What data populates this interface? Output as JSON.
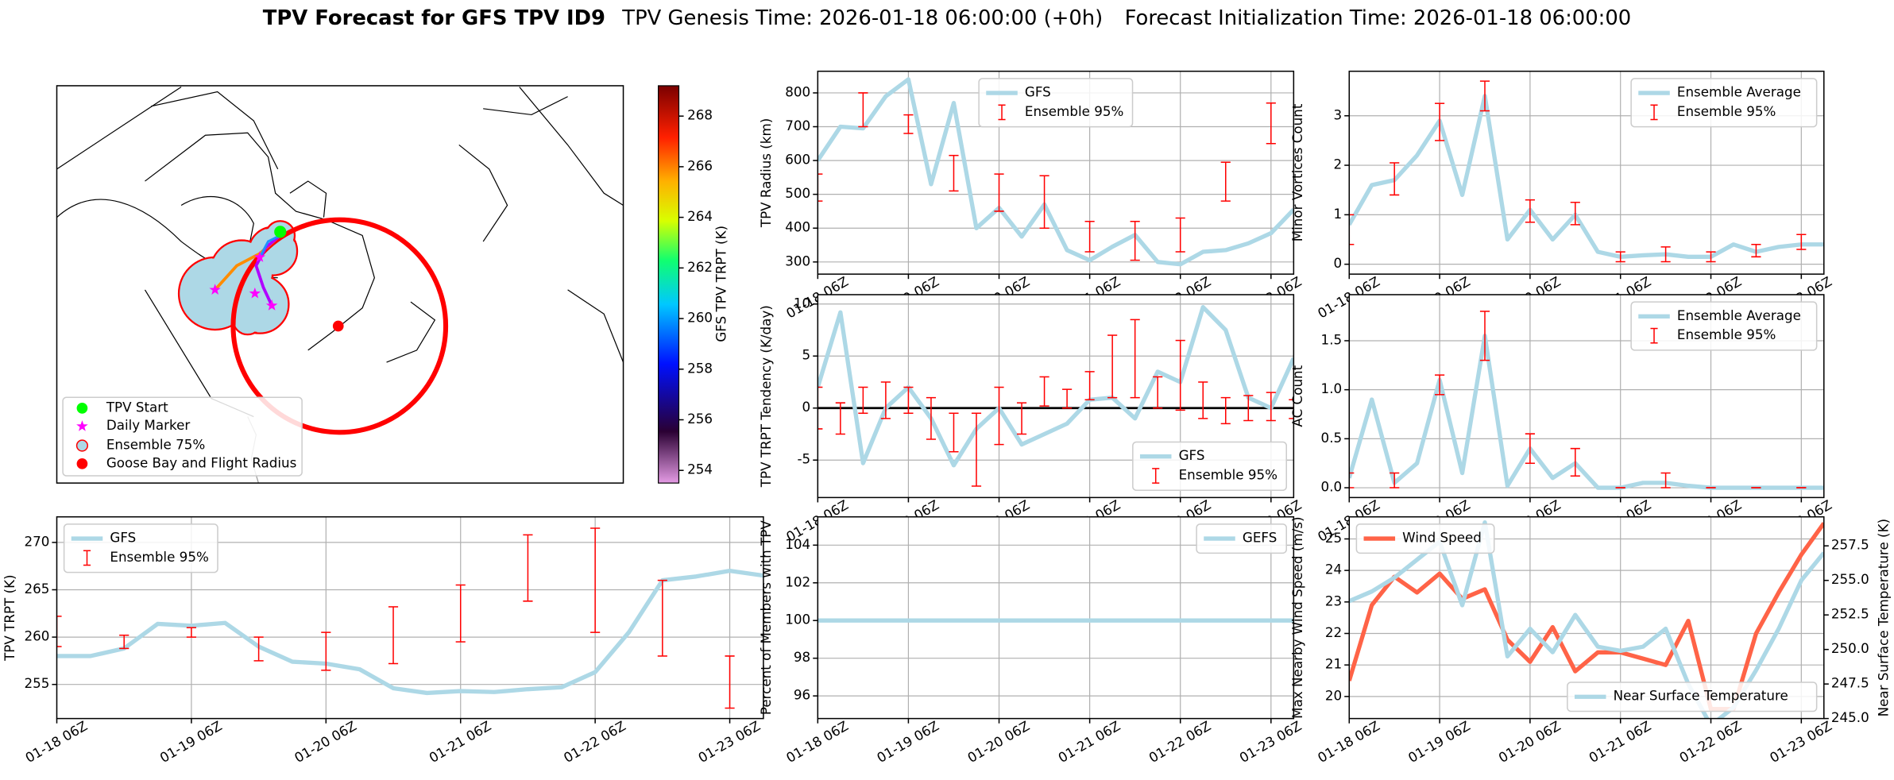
{
  "header": {
    "title": "TPV Forecast for GFS TPV ID9",
    "genesis": "TPV Genesis Time: 2026-01-18 06:00:00 (+0h)",
    "init": "Forecast Initialization Time: 2026-01-18 06:00:00"
  },
  "chart_data": [
    {
      "type": "map",
      "legend_labels": [
        "TPV Start",
        "Daily Marker",
        "Ensemble 75%",
        "Goose Bay and Flight Radius"
      ],
      "legend": "lower left",
      "colorbar": {
        "label": "GFS TPV TRPT (K)",
        "ylim": [
          253.5,
          269.2
        ],
        "yticks": [
          254,
          256,
          258,
          260,
          262,
          264,
          266,
          268
        ]
      }
    },
    {
      "type": "line",
      "ylabel": "TPV TRPT (K)",
      "categories": [
        "01-18 06Z",
        null,
        null,
        null,
        "01-19 06Z",
        null,
        null,
        null,
        "01-20 06Z",
        null,
        null,
        null,
        "01-21 06Z",
        null,
        null,
        null,
        "01-22 06Z",
        null,
        null,
        null,
        "01-23 06Z",
        null
      ],
      "series": [
        {
          "name": "GFS",
          "color": "#add8e6",
          "values": [
            258,
            258,
            258.8,
            261.4,
            261.2,
            261.5,
            259,
            257.4,
            257.2,
            256.6,
            254.6,
            254.1,
            254.3,
            254.2,
            254.5,
            254.7,
            256.3,
            260.5,
            266,
            266.4,
            267,
            266.5
          ]
        }
      ],
      "errorbars": {
        "name": "Ensemble 95%",
        "color": "#ff0000",
        "low": [
          259,
          null,
          258.8,
          null,
          260,
          null,
          257.5,
          null,
          256.5,
          null,
          257.2,
          null,
          259.5,
          null,
          263.8,
          null,
          260.5,
          null,
          258,
          null,
          252.5,
          null
        ],
        "high": [
          262.2,
          null,
          260.2,
          null,
          261,
          null,
          260,
          null,
          260.5,
          null,
          263.2,
          null,
          265.5,
          null,
          270.8,
          null,
          271.5,
          null,
          266,
          null,
          258,
          null
        ]
      },
      "ylim": [
        251.4,
        272.7
      ],
      "yticks": [
        255,
        260,
        265,
        270
      ],
      "grid": true,
      "legend": "upper left"
    },
    {
      "type": "line",
      "ylabel": "TPV Radius (km)",
      "categories": [
        "01-18 06Z",
        null,
        null,
        null,
        "01-19 06Z",
        null,
        null,
        null,
        "01-20 06Z",
        null,
        null,
        null,
        "01-21 06Z",
        null,
        null,
        null,
        "01-22 06Z",
        null,
        null,
        null,
        "01-23 06Z",
        null
      ],
      "series": [
        {
          "name": "GFS",
          "color": "#add8e6",
          "values": [
            600,
            700,
            695,
            790,
            840,
            530,
            770,
            400,
            460,
            375,
            470,
            335,
            305,
            345,
            380,
            300,
            293,
            330,
            335,
            355,
            385,
            455
          ]
        }
      ],
      "errorbars": {
        "name": "Ensemble 95%",
        "color": "#ff0000",
        "low": [
          480,
          null,
          700,
          null,
          680,
          null,
          510,
          null,
          450,
          null,
          400,
          null,
          330,
          null,
          305,
          null,
          330,
          null,
          480,
          null,
          650,
          null
        ],
        "high": [
          560,
          null,
          800,
          null,
          735,
          null,
          615,
          null,
          560,
          null,
          555,
          null,
          420,
          null,
          420,
          null,
          430,
          null,
          595,
          null,
          770,
          null
        ]
      },
      "ylim": [
        264,
        864
      ],
      "yticks": [
        300,
        400,
        500,
        600,
        700,
        800
      ],
      "grid": true,
      "legend": "upper center"
    },
    {
      "type": "line",
      "ylabel": "TPV TRPT Tendency (K/day)",
      "categories": [
        "01-18 06Z",
        null,
        null,
        null,
        "01-19 06Z",
        null,
        null,
        null,
        "01-20 06Z",
        null,
        null,
        null,
        "01-21 06Z",
        null,
        null,
        null,
        "01-22 06Z",
        null,
        null,
        null,
        "01-23 06Z",
        null
      ],
      "series": [
        {
          "name": "GFS",
          "color": "#add8e6",
          "values": [
            2,
            9.2,
            -5.3,
            0,
            2,
            -1,
            -5.5,
            -2,
            0,
            -3.5,
            -2.5,
            -1.5,
            0.8,
            1,
            -1,
            3.5,
            2.5,
            9.7,
            7.5,
            1,
            0,
            4.8
          ]
        }
      ],
      "errorbars": {
        "name": "Ensemble 95%",
        "color": "#ff0000",
        "low": [
          -2,
          -2.5,
          -0.5,
          -1,
          -0.5,
          -3,
          -4.2,
          -7.5,
          -3.5,
          -2.5,
          0.2,
          0,
          0.8,
          1,
          1,
          0,
          -0.2,
          -1,
          -1.5,
          -1.2,
          -1.2,
          -1
        ],
        "high": [
          2,
          0.5,
          2,
          2.5,
          2,
          1,
          -0.5,
          -0.5,
          2,
          0.5,
          3,
          1.8,
          3.5,
          7,
          8.5,
          3,
          6.5,
          2.5,
          1,
          1.2,
          1.5,
          0.8
        ]
      },
      "hline": 0,
      "ylim": [
        -8.6,
        10.9
      ],
      "yticks": [
        -5,
        0,
        5,
        10
      ],
      "grid": true,
      "legend": "lower right"
    },
    {
      "type": "line",
      "ylabel": "Percent of Members with TPV",
      "categories": [
        "01-18 06Z",
        null,
        null,
        null,
        "01-19 06Z",
        null,
        null,
        null,
        "01-20 06Z",
        null,
        null,
        null,
        "01-21 06Z",
        null,
        null,
        null,
        "01-22 06Z",
        null,
        null,
        null,
        "01-23 06Z",
        null
      ],
      "series": [
        {
          "name": "GEFS",
          "color": "#add8e6",
          "values": [
            100,
            100,
            100,
            100,
            100,
            100,
            100,
            100,
            100,
            100,
            100,
            100,
            100,
            100,
            100,
            100,
            100,
            100,
            100,
            100,
            100,
            100
          ]
        }
      ],
      "ylim": [
        94.8,
        105.5
      ],
      "yticks": [
        96,
        98,
        100,
        102,
        104
      ],
      "grid": true,
      "legend": "upper right"
    },
    {
      "type": "line",
      "ylabel": "Minor Vortices Count",
      "categories": [
        "01-18 06Z",
        null,
        null,
        null,
        "01-19 06Z",
        null,
        null,
        null,
        "01-20 06Z",
        null,
        null,
        null,
        "01-21 06Z",
        null,
        null,
        null,
        "01-22 06Z",
        null,
        null,
        null,
        "01-23 06Z",
        null
      ],
      "series": [
        {
          "name": "Ensemble Average",
          "color": "#add8e6",
          "values": [
            0.8,
            1.6,
            1.7,
            2.2,
            2.9,
            1.4,
            3.4,
            0.5,
            1.1,
            0.5,
            1.0,
            0.25,
            0.15,
            0.18,
            0.2,
            0.15,
            0.15,
            0.4,
            0.25,
            0.35,
            0.4,
            0.4
          ]
        }
      ],
      "errorbars": {
        "name": "Ensemble 95%",
        "color": "#ff0000",
        "low": [
          0.4,
          null,
          1.4,
          null,
          2.5,
          null,
          3.1,
          null,
          0.85,
          null,
          0.8,
          null,
          0.05,
          null,
          0.05,
          null,
          0.05,
          null,
          0.15,
          null,
          0.3,
          null
        ],
        "high": [
          1.0,
          null,
          2.05,
          null,
          3.25,
          null,
          3.7,
          null,
          1.3,
          null,
          1.25,
          null,
          0.25,
          null,
          0.35,
          null,
          0.25,
          null,
          0.4,
          null,
          0.6,
          null
        ]
      },
      "ylim": [
        -0.2,
        3.9
      ],
      "yticks": [
        0,
        1,
        2,
        3
      ],
      "grid": true,
      "legend": "upper right"
    },
    {
      "type": "line",
      "ylabel": "AC Count",
      "categories": [
        "01-18 06Z",
        null,
        null,
        null,
        "01-19 06Z",
        null,
        null,
        null,
        "01-20 06Z",
        null,
        null,
        null,
        "01-21 06Z",
        null,
        null,
        null,
        "01-22 06Z",
        null,
        null,
        null,
        "01-23 06Z",
        null
      ],
      "series": [
        {
          "name": "Ensemble Average",
          "color": "#add8e6",
          "values": [
            0.1,
            0.9,
            0.05,
            0.25,
            1.1,
            0.15,
            1.55,
            0.02,
            0.4,
            0.1,
            0.25,
            0,
            0,
            0.05,
            0.05,
            0.02,
            0,
            0,
            0,
            0,
            0,
            0
          ]
        }
      ],
      "errorbars": {
        "name": "Ensemble 95%",
        "color": "#ff0000",
        "low": [
          0,
          null,
          0,
          null,
          0.95,
          null,
          1.3,
          null,
          0.25,
          null,
          0.12,
          null,
          0,
          null,
          0,
          null,
          0,
          null,
          0,
          null,
          0,
          null
        ],
        "high": [
          0.15,
          null,
          0.15,
          null,
          1.15,
          null,
          1.8,
          null,
          0.55,
          null,
          0.4,
          null,
          0,
          null,
          0.15,
          null,
          0,
          null,
          0,
          null,
          0,
          null
        ]
      },
      "ylim": [
        -0.1,
        1.97
      ],
      "yticks": [
        {
          "value": 0,
          "label": "0.0"
        },
        0.5,
        {
          "value": 1,
          "label": "1.0"
        },
        1.5
      ],
      "grid": true,
      "legend": "upper right"
    },
    {
      "type": "line",
      "ylabel": "Max Nearby Wind Speed (m/s)",
      "ylabel_color": "#ff6347",
      "y2label": "Near Surface Temperature (K)",
      "y2label_color": "#4169e1",
      "categories": [
        "01-18 06Z",
        null,
        null,
        null,
        "01-19 06Z",
        null,
        null,
        null,
        "01-20 06Z",
        null,
        null,
        null,
        "01-21 06Z",
        null,
        null,
        null,
        "01-22 06Z",
        null,
        null,
        null,
        "01-23 06Z",
        null
      ],
      "series": [
        {
          "name": "Wind Speed",
          "color": "#ff6347",
          "legend": "upper left",
          "values": [
            20.5,
            22.9,
            23.8,
            23.3,
            23.9,
            23.1,
            23.4,
            21.8,
            21.1,
            22.2,
            20.8,
            21.4,
            21.4,
            21.2,
            21.0,
            22.4,
            19.6,
            19.6,
            22.0,
            23.3,
            24.5,
            25.5
          ]
        },
        {
          "name": "Near Surface Temperature",
          "color": "#add8e6",
          "axis": "y2",
          "legend": "lower right",
          "values": [
            253.5,
            254.2,
            255.2,
            256.5,
            257.8,
            253.2,
            259.2,
            249.5,
            251.5,
            249.8,
            252.5,
            250.2,
            249.9,
            250.2,
            251.5,
            247.5,
            244.5,
            245.8,
            248.5,
            251.5,
            255,
            257
          ]
        }
      ],
      "ylim": [
        19.3,
        25.7
      ],
      "yticks": [
        20,
        21,
        22,
        23,
        24,
        25
      ],
      "y2lim": [
        245,
        259.6
      ],
      "y2ticks": [
        {
          "value": 245,
          "label": "245.0"
        },
        247.5,
        {
          "value": 250,
          "label": "250.0"
        },
        252.5,
        {
          "value": 255,
          "label": "255.0"
        },
        257.5
      ],
      "grid": true
    }
  ]
}
